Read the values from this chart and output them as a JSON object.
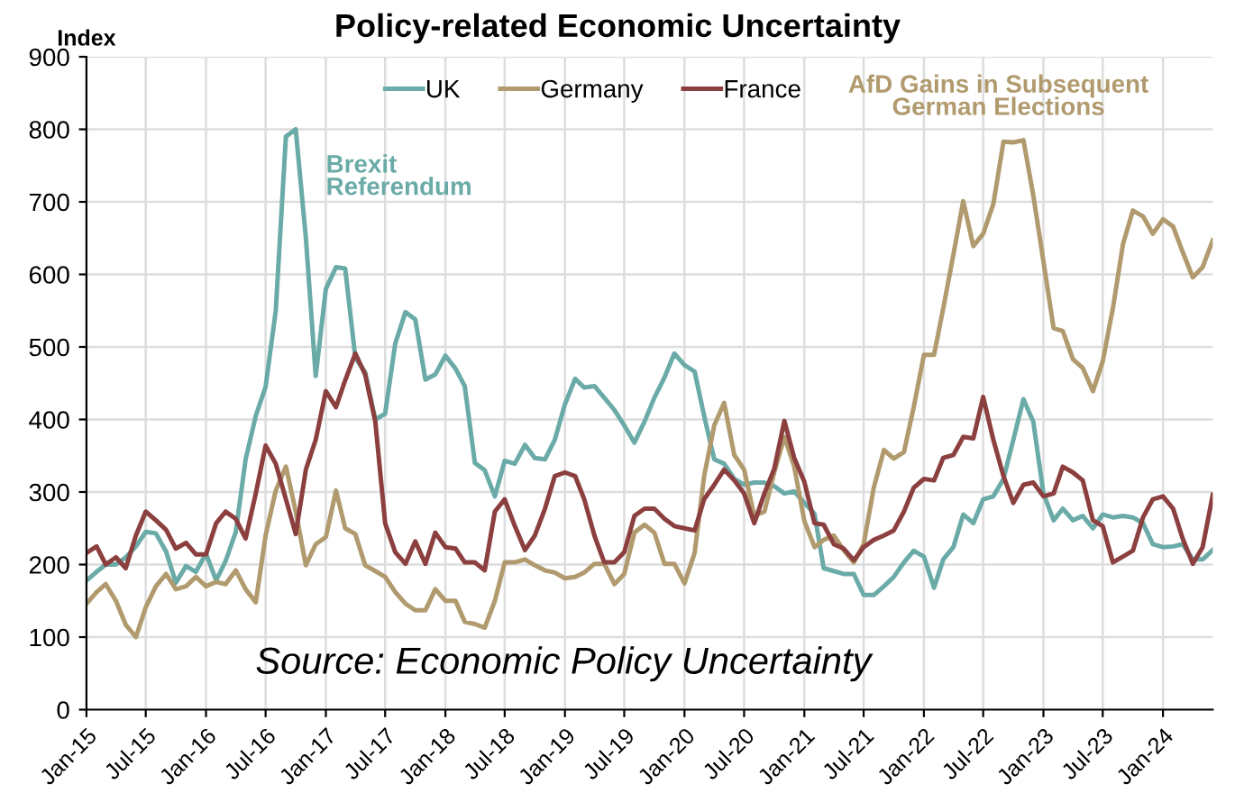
{
  "chart_data": {
    "type": "line",
    "title": "Policy-related Economic Uncertainty",
    "ylabel": "Index",
    "x": [
      "2015-01",
      "2015-02",
      "2015-03",
      "2015-04",
      "2015-05",
      "2015-06",
      "2015-07",
      "2015-08",
      "2015-09",
      "2015-10",
      "2015-11",
      "2015-12",
      "2016-01",
      "2016-02",
      "2016-03",
      "2016-04",
      "2016-05",
      "2016-06",
      "2016-07",
      "2016-08",
      "2016-09",
      "2016-10",
      "2016-11",
      "2016-12",
      "2017-01",
      "2017-02",
      "2017-03",
      "2017-04",
      "2017-05",
      "2017-06",
      "2017-07",
      "2017-08",
      "2017-09",
      "2017-10",
      "2017-11",
      "2017-12",
      "2018-01",
      "2018-02",
      "2018-03",
      "2018-04",
      "2018-05",
      "2018-06",
      "2018-07",
      "2018-08",
      "2018-09",
      "2018-10",
      "2018-11",
      "2018-12",
      "2019-01",
      "2019-02",
      "2019-03",
      "2019-04",
      "2019-05",
      "2019-06",
      "2019-07",
      "2019-08",
      "2019-09",
      "2019-10",
      "2019-11",
      "2019-12",
      "2020-01",
      "2020-02",
      "2020-03",
      "2020-04",
      "2020-05",
      "2020-06",
      "2020-07",
      "2020-08",
      "2020-09",
      "2020-10",
      "2020-11",
      "2020-12",
      "2021-01",
      "2021-02",
      "2021-03",
      "2021-04",
      "2021-05",
      "2021-06",
      "2021-07",
      "2021-08",
      "2021-09",
      "2021-10",
      "2021-11",
      "2021-12",
      "2022-01",
      "2022-02",
      "2022-03",
      "2022-04",
      "2022-05",
      "2022-06",
      "2022-07",
      "2022-08",
      "2022-09",
      "2022-10",
      "2022-11",
      "2022-12",
      "2023-01",
      "2023-02",
      "2023-03",
      "2023-04",
      "2023-05",
      "2023-06",
      "2023-07",
      "2023-08",
      "2023-09",
      "2023-10",
      "2023-11",
      "2023-12",
      "2024-01",
      "2024-02",
      "2024-03",
      "2024-04",
      "2024-05",
      "2024-06"
    ],
    "series": [
      {
        "name": "UK",
        "color": "#6aaba8",
        "values": [
          178,
          190,
          200,
          200,
          210,
          225,
          245,
          243,
          218,
          175,
          198,
          190,
          215,
          178,
          205,
          245,
          345,
          405,
          445,
          550,
          790,
          800,
          650,
          460,
          580,
          610,
          608,
          485,
          465,
          400,
          408,
          505,
          548,
          538,
          455,
          462,
          488,
          470,
          446,
          340,
          330,
          294,
          343,
          339,
          365,
          347,
          345,
          372,
          421,
          456,
          444,
          446,
          430,
          413,
          392,
          368,
          397,
          430,
          458,
          491,
          475,
          466,
          405,
          345,
          339,
          318,
          310,
          313,
          313,
          308,
          298,
          301,
          285,
          270,
          195,
          191,
          187,
          187,
          158,
          158,
          170,
          183,
          203,
          219,
          211,
          168,
          207,
          224,
          269,
          257,
          290,
          294,
          318,
          372,
          428,
          397,
          298,
          261,
          277,
          261,
          267,
          250,
          269,
          265,
          267,
          265,
          257,
          228,
          224,
          225,
          228,
          207,
          207,
          220
        ]
      },
      {
        "name": "Germany",
        "color": "#b09a6e",
        "values": [
          146,
          162,
          173,
          150,
          117,
          100,
          141,
          170,
          187,
          166,
          170,
          183,
          170,
          176,
          173,
          192,
          166,
          148,
          240,
          302,
          335,
          273,
          199,
          228,
          238,
          302,
          250,
          242,
          199,
          191,
          183,
          162,
          146,
          137,
          137,
          166,
          150,
          150,
          121,
          118,
          113,
          150,
          203,
          203,
          207,
          199,
          192,
          189,
          181,
          183,
          189,
          201,
          201,
          173,
          187,
          244,
          255,
          244,
          201,
          201,
          174,
          216,
          322,
          392,
          423,
          351,
          331,
          267,
          273,
          327,
          376,
          335,
          260,
          224,
          234,
          240,
          220,
          203,
          228,
          306,
          358,
          346,
          355,
          417,
          489,
          489,
          553,
          627,
          701,
          639,
          656,
          697,
          783,
          782,
          785,
          709,
          618,
          526,
          522,
          483,
          471,
          439,
          480,
          553,
          642,
          688,
          680,
          656,
          676,
          666,
          631,
          596,
          610,
          647
        ]
      },
      {
        "name": "France",
        "color": "#8c3f3f",
        "values": [
          216,
          225,
          200,
          210,
          195,
          240,
          273,
          261,
          248,
          222,
          230,
          214,
          214,
          257,
          273,
          263,
          236,
          298,
          364,
          339,
          290,
          242,
          331,
          372,
          439,
          417,
          454,
          491,
          462,
          397,
          257,
          217,
          201,
          232,
          201,
          244,
          224,
          222,
          203,
          203,
          192,
          273,
          290,
          253,
          220,
          240,
          277,
          322,
          327,
          322,
          290,
          240,
          203,
          203,
          217,
          267,
          277,
          277,
          263,
          253,
          250,
          247,
          290,
          310,
          331,
          316,
          298,
          257,
          298,
          332,
          398,
          347,
          314,
          257,
          255,
          228,
          222,
          206,
          224,
          234,
          240,
          247,
          273,
          306,
          318,
          316,
          347,
          351,
          376,
          374,
          431,
          372,
          322,
          285,
          310,
          313,
          294,
          298,
          335,
          327,
          316,
          261,
          253,
          203,
          211,
          219,
          265,
          290,
          294,
          277,
          236,
          201,
          224,
          296
        ]
      }
    ],
    "annotations": [
      {
        "text": "Brexit\nReferendum",
        "x": "2016-09",
        "y": 800
      },
      {
        "text": "AfD Gains in Subsequent\nGerman Elections",
        "x": "2022-11",
        "y": 785
      },
      "Source: Economic Policy Uncertainty"
    ],
    "xlim": [
      "2015-01",
      "2024-06"
    ],
    "xticks": [
      {
        "value": "2015-01",
        "label": "Jan-15"
      },
      {
        "value": "2015-07",
        "label": "Jul-15"
      },
      {
        "value": "2016-01",
        "label": "Jan-16"
      },
      {
        "value": "2016-07",
        "label": "Jul-16"
      },
      {
        "value": "2017-01",
        "label": "Jan-17"
      },
      {
        "value": "2017-07",
        "label": "Jul-17"
      },
      {
        "value": "2018-01",
        "label": "Jan-18"
      },
      {
        "value": "2018-07",
        "label": "Jul-18"
      },
      {
        "value": "2019-01",
        "label": "Jan-19"
      },
      {
        "value": "2019-07",
        "label": "Jul-19"
      },
      {
        "value": "2020-01",
        "label": "Jan-20"
      },
      {
        "value": "2020-07",
        "label": "Jul-20"
      },
      {
        "value": "2021-01",
        "label": "Jan-21"
      },
      {
        "value": "2021-07",
        "label": "Jul-21"
      },
      {
        "value": "2022-01",
        "label": "Jan-22"
      },
      {
        "value": "2022-07",
        "label": "Jul-22"
      },
      {
        "value": "2023-01",
        "label": "Jan-23"
      },
      {
        "value": "2023-07",
        "label": "Jul-23"
      },
      {
        "value": "2024-01",
        "label": "Jan-24"
      }
    ],
    "ylim": [
      0,
      900
    ],
    "yticks": [
      0,
      100,
      200,
      300,
      400,
      500,
      600,
      700,
      800,
      900
    ],
    "grid": true,
    "legend": "top",
    "marker": "none",
    "line_style": "solid"
  }
}
